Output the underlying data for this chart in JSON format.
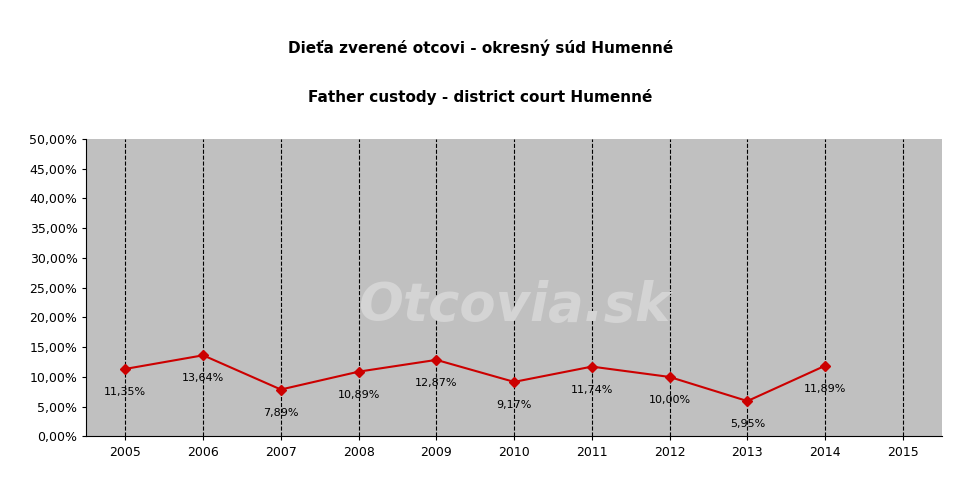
{
  "title_line1": "Dieťa zverené otcovi - okresný súd Humenné",
  "title_line2": "Father custody - district court Humenné",
  "years": [
    2005,
    2006,
    2007,
    2008,
    2009,
    2010,
    2011,
    2012,
    2013,
    2014,
    2015
  ],
  "values": [
    0.1135,
    0.1364,
    0.0789,
    0.1089,
    0.1287,
    0.0917,
    0.1174,
    0.1,
    0.0595,
    0.1189,
    null
  ],
  "labels": [
    "11,35%",
    "13,64%",
    "7,89%",
    "10,89%",
    "12,87%",
    "9,17%",
    "11,74%",
    "10,00%",
    "5,95%",
    "11,89%"
  ],
  "label_years": [
    2005,
    2006,
    2007,
    2008,
    2009,
    2010,
    2011,
    2012,
    2013,
    2014
  ],
  "ylim": [
    0.0,
    0.5
  ],
  "yticks": [
    0.0,
    0.05,
    0.1,
    0.15,
    0.2,
    0.25,
    0.3,
    0.35,
    0.4,
    0.45,
    0.5
  ],
  "ytick_labels": [
    "0,00%",
    "5,00%",
    "10,00%",
    "15,00%",
    "20,00%",
    "25,00%",
    "30,00%",
    "35,00%",
    "40,00%",
    "45,00%",
    "50,00%"
  ],
  "line_color": "#cc0000",
  "marker": "D",
  "marker_size": 5,
  "plot_bg_color": "#c0c0c0",
  "fig_bg_color": "#ffffff",
  "watermark_text": "Otcovia.sk",
  "watermark_color": "#d4d4d4",
  "grid_color": "#000000",
  "label_fontsize": 8,
  "title_fontsize": 11,
  "tick_fontsize": 9
}
